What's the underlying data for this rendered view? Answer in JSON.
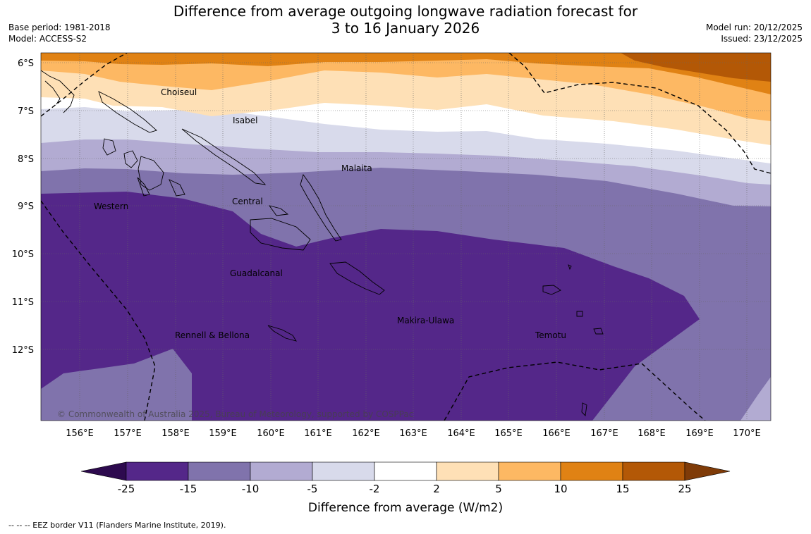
{
  "title_line1": "Difference from average outgoing longwave radiation forecast for",
  "title_line2": "3 to 16 January 2026",
  "base_period": "Base period: 1981-2018",
  "model": "Model: ACCESS-S2",
  "model_run": "Model run: 20/12/2025",
  "issued": "Issued: 23/12/2025",
  "copyright": "© Commonwealth of Australia 2025, Bureau of Meteorology, supported by COSPPac",
  "footnote": "--  --  -- EEZ border V11 (Flanders Marine Institute, 2019).",
  "lat_labels": [
    "6°S",
    "7°S",
    "8°S",
    "9°S",
    "10°S",
    "11°S",
    "12°S"
  ],
  "lon_labels": [
    "156°E",
    "157°E",
    "158°E",
    "159°E",
    "160°E",
    "161°E",
    "162°E",
    "163°E",
    "164°E",
    "165°E",
    "166°E",
    "167°E",
    "168°E",
    "169°E",
    "170°E"
  ],
  "regions": [
    "Choiseul",
    "Isabel",
    "Malaita",
    "Western",
    "Central",
    "Guadalcanal",
    "Makira-Ulawa",
    "Temotu",
    "Rennell & Bellona"
  ],
  "colorbar": {
    "title": "Difference from average (W/m2)",
    "ticks": [
      "-25",
      "-15",
      "-10",
      "-5",
      "-2",
      "2",
      "5",
      "10",
      "15",
      "25"
    ],
    "colors": [
      "#2d0a4e",
      "#542789",
      "#8073ac",
      "#b2abd2",
      "#d8daeb",
      "#ffffff",
      "#fee0b6",
      "#fdb863",
      "#e08214",
      "#b35806",
      "#7f3b08"
    ]
  },
  "chart_data": {
    "type": "heatmap",
    "variable": "Difference from average outgoing longwave radiation (W/m2)",
    "period": "3 to 16 January 2026",
    "xrange_deg_e": [
      155.2,
      170.5
    ],
    "yrange_deg_s": [
      5.8,
      13.5
    ],
    "levels": [
      -25,
      -15,
      -10,
      -5,
      -2,
      2,
      5,
      10,
      15,
      25
    ],
    "pattern": "Positive anomalies (10 to 25) in the north-east, decreasing southward to -25 to -15 over most of the southern domain"
  }
}
